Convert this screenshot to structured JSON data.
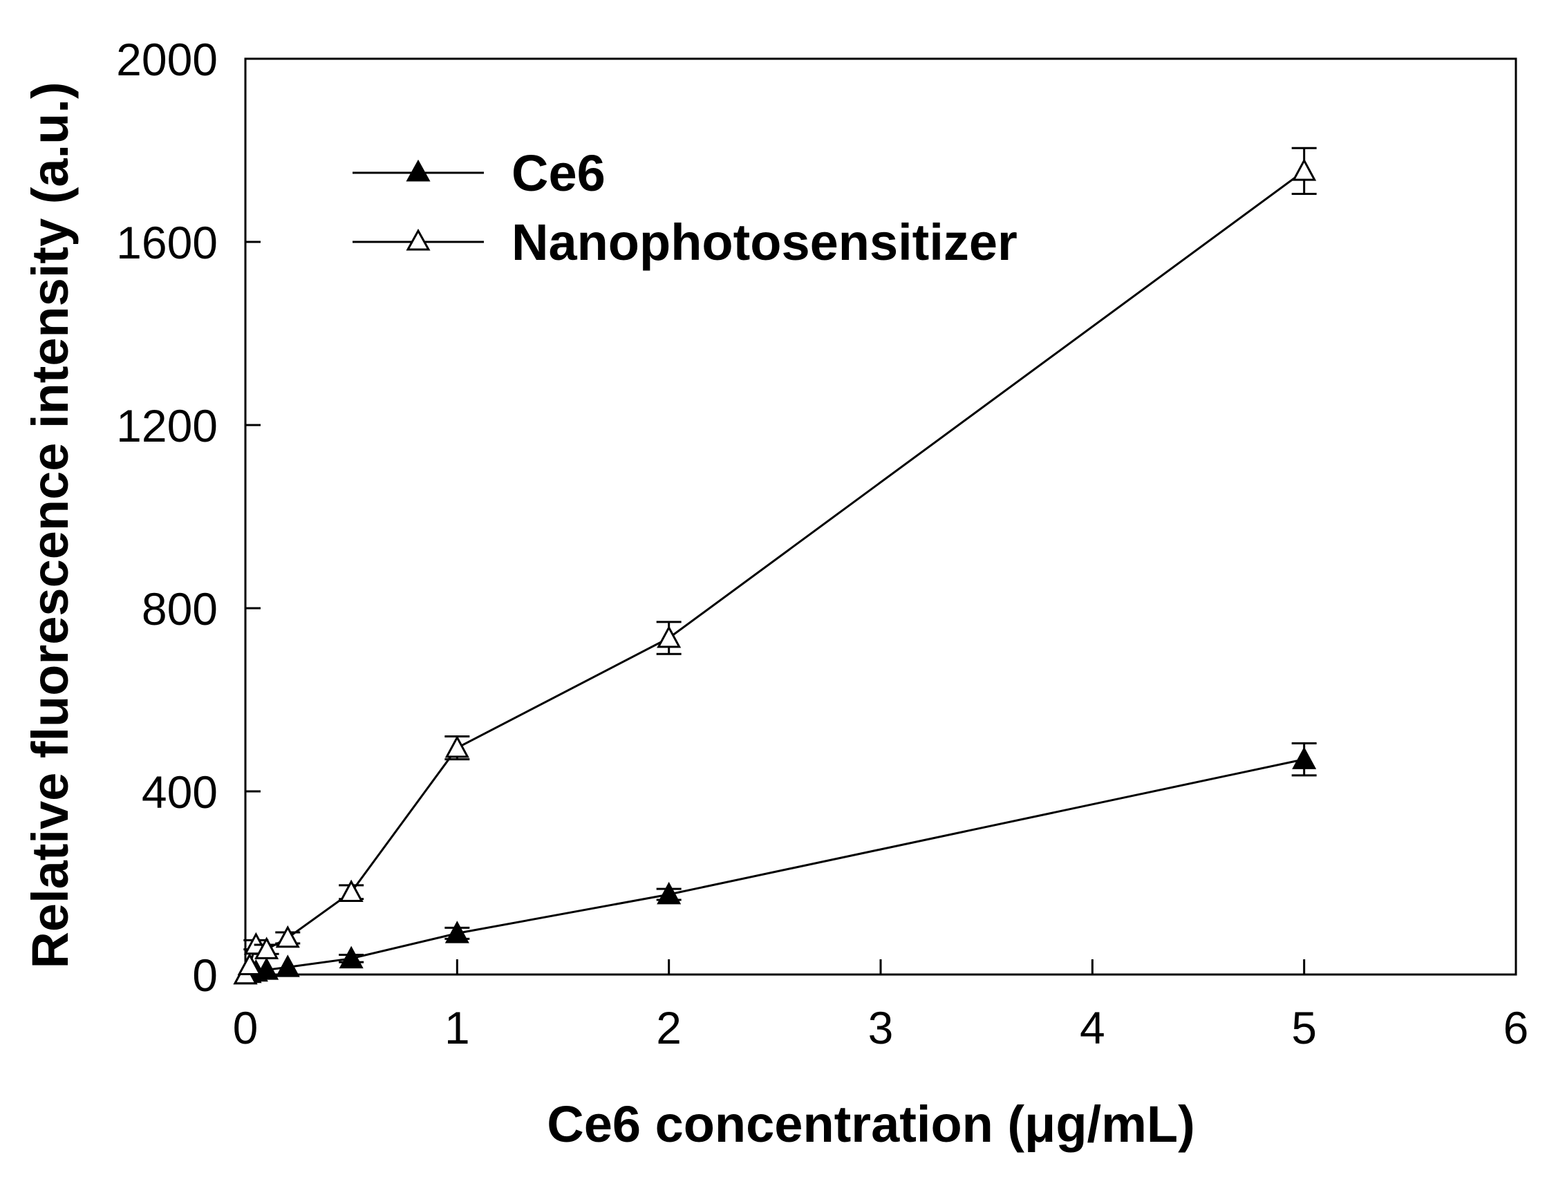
{
  "chart_data": {
    "type": "line",
    "title": "",
    "xlabel": "Ce6 concentration (μg/mL)",
    "ylabel": "Relative fluorescence intensity (a.u.)",
    "xlim": [
      0,
      6
    ],
    "ylim": [
      0,
      2000
    ],
    "xticks": [
      "0",
      "1",
      "2",
      "3",
      "4",
      "5",
      "6"
    ],
    "yticks": [
      "0",
      "400",
      "800",
      "1200",
      "1600",
      "2000"
    ],
    "grid": false,
    "legend_position": "top-left",
    "series": [
      {
        "name": "Ce6",
        "marker": "filled-triangle",
        "x": [
          0,
          0.02,
          0.05,
          0.1,
          0.2,
          0.5,
          1,
          2,
          5
        ],
        "y": [
          0,
          3,
          6,
          10,
          16,
          35,
          90,
          175,
          470
        ],
        "err": [
          0,
          0,
          0,
          0,
          0,
          8,
          12,
          12,
          35
        ]
      },
      {
        "name": "Nanophotosensitizer",
        "marker": "open-triangle",
        "x": [
          0,
          0.02,
          0.05,
          0.1,
          0.2,
          0.5,
          1,
          2,
          5
        ],
        "y": [
          0,
          20,
          65,
          55,
          80,
          180,
          495,
          735,
          1755
        ],
        "err": [
          0,
          0,
          10,
          10,
          12,
          15,
          25,
          35,
          50
        ]
      }
    ]
  }
}
